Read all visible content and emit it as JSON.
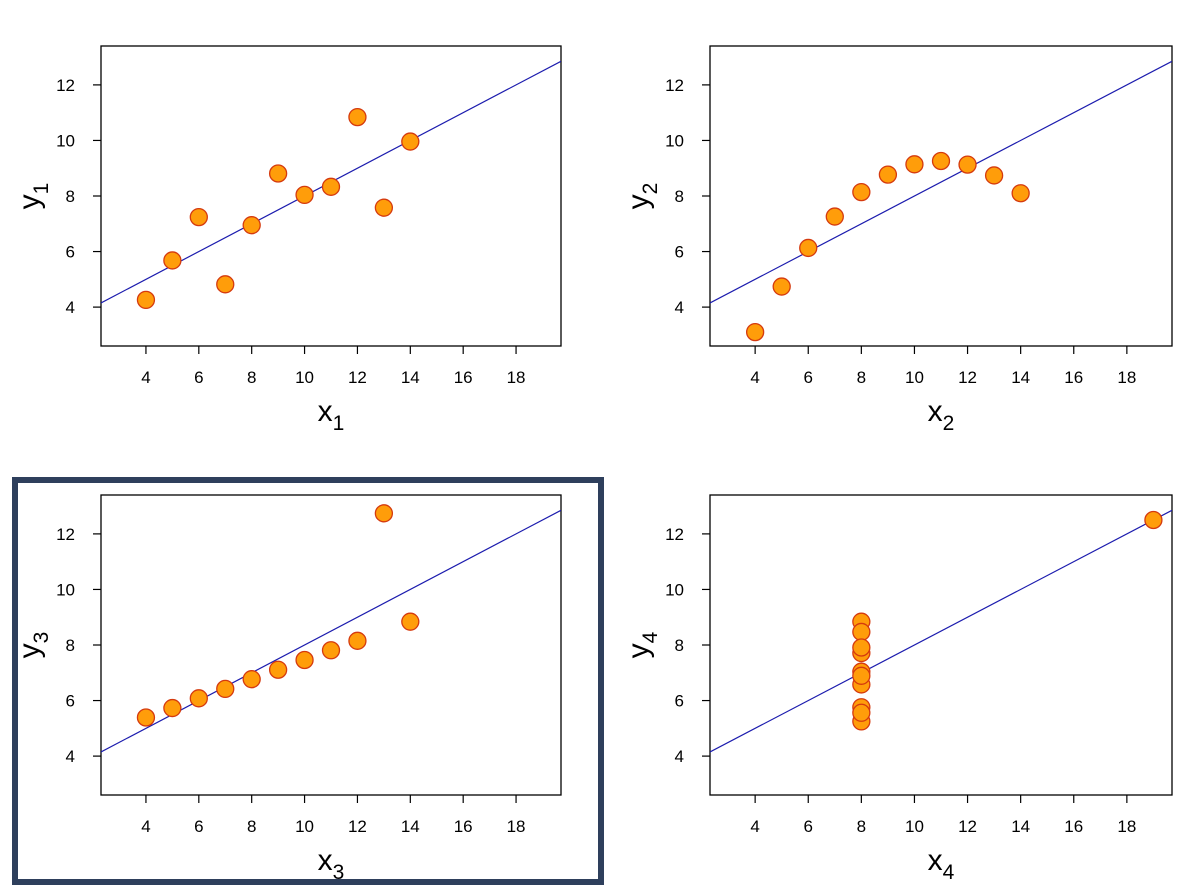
{
  "colors": {
    "point_fill": "#ff9d0a",
    "point_stroke": "#d53a0e",
    "fit_line": "#1c1cae",
    "highlight_border": "#2e3f5c"
  },
  "highlighted_panel": 2,
  "chart_data": [
    {
      "type": "scatter",
      "title": "",
      "xlabel": "x",
      "xlabel_sub": "1",
      "ylabel": "y",
      "ylabel_sub": "1",
      "xlim": [
        2.3,
        19.7
      ],
      "ylim": [
        2.6,
        13.4
      ],
      "xticks": [
        4,
        6,
        8,
        10,
        12,
        14,
        16,
        18
      ],
      "yticks": [
        4,
        6,
        8,
        10,
        12
      ],
      "x": [
        10,
        8,
        13,
        9,
        11,
        14,
        6,
        4,
        12,
        7,
        5
      ],
      "y": [
        8.04,
        6.95,
        7.58,
        8.81,
        8.33,
        9.96,
        7.24,
        4.26,
        10.84,
        4.82,
        5.68
      ],
      "fit": {
        "intercept": 3.0,
        "slope": 0.5
      },
      "grid": false,
      "legend": "none"
    },
    {
      "type": "scatter",
      "title": "",
      "xlabel": "x",
      "xlabel_sub": "2",
      "ylabel": "y",
      "ylabel_sub": "2",
      "xlim": [
        2.3,
        19.7
      ],
      "ylim": [
        2.6,
        13.4
      ],
      "xticks": [
        4,
        6,
        8,
        10,
        12,
        14,
        16,
        18
      ],
      "yticks": [
        4,
        6,
        8,
        10,
        12
      ],
      "x": [
        10,
        8,
        13,
        9,
        11,
        14,
        6,
        4,
        12,
        7,
        5
      ],
      "y": [
        9.14,
        8.14,
        8.74,
        8.77,
        9.26,
        8.1,
        6.13,
        3.1,
        9.13,
        7.26,
        4.74
      ],
      "fit": {
        "intercept": 3.0,
        "slope": 0.5
      },
      "grid": false,
      "legend": "none"
    },
    {
      "type": "scatter",
      "title": "",
      "xlabel": "x",
      "xlabel_sub": "3",
      "ylabel": "y",
      "ylabel_sub": "3",
      "xlim": [
        2.3,
        19.7
      ],
      "ylim": [
        2.6,
        13.4
      ],
      "xticks": [
        4,
        6,
        8,
        10,
        12,
        14,
        16,
        18
      ],
      "yticks": [
        4,
        6,
        8,
        10,
        12
      ],
      "x": [
        10,
        8,
        13,
        9,
        11,
        14,
        6,
        4,
        12,
        7,
        5
      ],
      "y": [
        7.46,
        6.77,
        12.74,
        7.11,
        7.81,
        8.84,
        6.08,
        5.39,
        8.15,
        6.42,
        5.73
      ],
      "fit": {
        "intercept": 3.0,
        "slope": 0.5
      },
      "grid": false,
      "legend": "none"
    },
    {
      "type": "scatter",
      "title": "",
      "xlabel": "x",
      "xlabel_sub": "4",
      "ylabel": "y",
      "ylabel_sub": "4",
      "xlim": [
        2.3,
        19.7
      ],
      "ylim": [
        2.6,
        13.4
      ],
      "xticks": [
        4,
        6,
        8,
        10,
        12,
        14,
        16,
        18
      ],
      "yticks": [
        4,
        6,
        8,
        10,
        12
      ],
      "x": [
        8,
        8,
        8,
        8,
        8,
        8,
        8,
        19,
        8,
        8,
        8
      ],
      "y": [
        6.58,
        5.76,
        7.71,
        8.84,
        8.47,
        7.04,
        5.25,
        12.5,
        5.56,
        7.91,
        6.89
      ],
      "fit": {
        "intercept": 3.0,
        "slope": 0.5
      },
      "grid": false,
      "legend": "none"
    }
  ]
}
